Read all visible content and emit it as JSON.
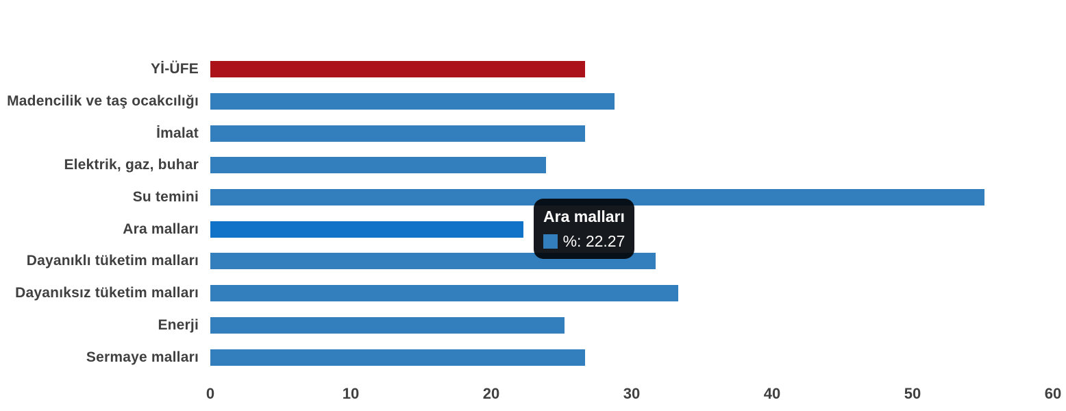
{
  "chart_data": {
    "type": "bar",
    "orientation": "horizontal",
    "title": "",
    "xlabel": "",
    "ylabel": "",
    "categories": [
      "Yİ-ÜFE",
      "Madencilik ve taş ocakcılığı",
      "İmalat",
      "Elektrik, gaz, buhar",
      "Su temini",
      "Ara malları",
      "Dayanıklı tüketim malları",
      "Dayanıksız tüketim malları",
      "Enerji",
      "Sermaye malları"
    ],
    "values": [
      26.7,
      28.8,
      26.7,
      23.9,
      55.1,
      22.27,
      31.7,
      33.3,
      25.2,
      26.7
    ],
    "series_name": "%",
    "xlim": [
      0,
      60
    ],
    "x_ticks": [
      0,
      10,
      20,
      30,
      40,
      50,
      60
    ],
    "grid": false,
    "legend_position": "none",
    "emphasized_category": "Yİ-ÜFE",
    "hovered_category": "Ara malları"
  },
  "colors": {
    "background": "#ffffff",
    "bar": "#337fbd",
    "bar_hover": "#1173c7",
    "bar_emphasis": "#ab121a",
    "label": "#404040",
    "tooltip_bg": "rgba(4,8,12,0.93)",
    "tooltip_text": "#ffffff"
  },
  "tooltip": {
    "title": "Ara malları",
    "value_text": "%: 22.27",
    "series_swatch_color": "#337fbd"
  }
}
